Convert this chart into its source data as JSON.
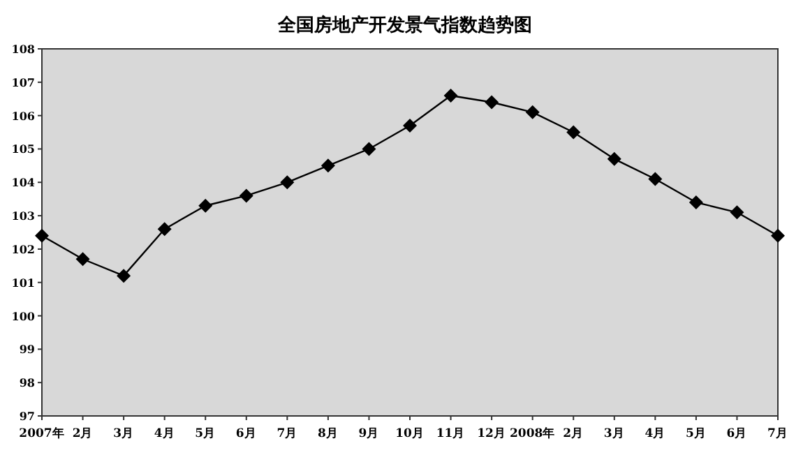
{
  "chart_data": {
    "type": "line",
    "title": "全国房地产开发景气指数趋势图",
    "categories": [
      "2007年",
      "2月",
      "3月",
      "4月",
      "5月",
      "6月",
      "7月",
      "8月",
      "9月",
      "10月",
      "11月",
      "12月",
      "2008年",
      "2月",
      "3月",
      "4月",
      "5月",
      "6月",
      "7月"
    ],
    "series": [
      {
        "color": "#000000",
        "values": [
          102.4,
          101.7,
          101.2,
          102.6,
          103.3,
          103.6,
          104.0,
          104.5,
          105.0,
          105.7,
          106.6,
          106.4,
          106.1,
          105.5,
          104.7,
          104.1,
          103.4,
          103.1,
          102.4
        ]
      }
    ],
    "ylim": [
      97,
      108
    ],
    "yticks": [
      97,
      98,
      99,
      100,
      101,
      102,
      103,
      104,
      105,
      106,
      107,
      108
    ],
    "marker": "diamond",
    "line_style": "solid",
    "grid": false
  }
}
